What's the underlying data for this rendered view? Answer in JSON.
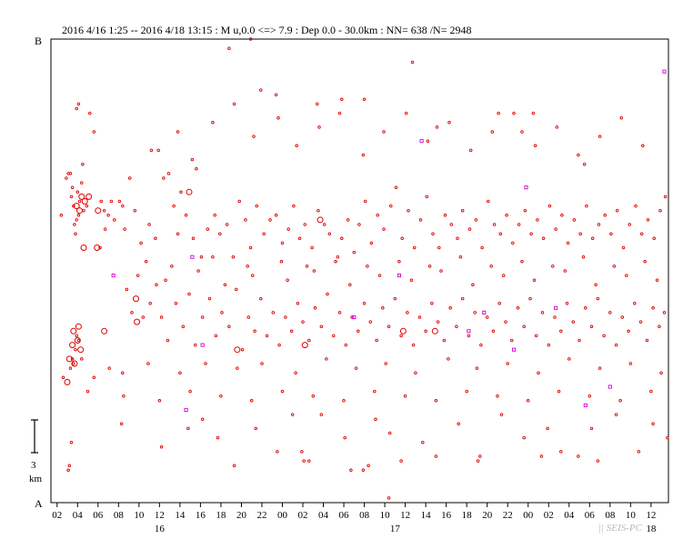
{
  "header": {
    "text": "2016 4/16 1:25 -- 2016 4/18 13:15  : M u,0.0 <=> 7.9   :  Dep 0.0 - 30.0km :  NN= 638 /N= 2948"
  },
  "watermark": "|| SEIS-PC",
  "colors": {
    "event": "#e00000",
    "highlight": "#d400d4",
    "axis": "#000000",
    "background": "#ffffff"
  },
  "chart_data": {
    "type": "scatter",
    "title": "",
    "ylabel_top": "B",
    "ylabel_bottom": "A",
    "scale_bar": {
      "value": "3",
      "unit": "km"
    },
    "xlim": [
      1.4,
      61.7
    ],
    "x_unit": "hours since 2016-04-16 00:00",
    "x_tick_labels": [
      "02",
      "04",
      "06",
      "08",
      "10",
      "12",
      "14",
      "16",
      "18",
      "20",
      "22",
      "00",
      "02",
      "04",
      "06",
      "08",
      "10",
      "12",
      "14",
      "16",
      "18",
      "20",
      "22",
      "00",
      "02",
      "04",
      "06",
      "08",
      "10",
      "12"
    ],
    "x_tick_hours": [
      2,
      4,
      6,
      8,
      10,
      12,
      14,
      16,
      18,
      20,
      22,
      24,
      26,
      28,
      30,
      32,
      34,
      36,
      38,
      40,
      42,
      44,
      46,
      48,
      50,
      52,
      54,
      56,
      58,
      60
    ],
    "date_labels": [
      {
        "label": "16",
        "hour": 12
      },
      {
        "label": "17",
        "hour": 35
      },
      {
        "label": "18",
        "hour": 60
      }
    ],
    "y_axis": "distance along profile A–B (A = 0, B = 1)",
    "points": [
      [
        2.4,
        0.62
      ],
      [
        2.9,
        0.7
      ],
      [
        3.1,
        0.71
      ],
      [
        3.3,
        0.71
      ],
      [
        3.4,
        0.66
      ],
      [
        3.5,
        0.68
      ],
      [
        3.6,
        0.64
      ],
      [
        3.7,
        0.6
      ],
      [
        3.8,
        0.58
      ],
      [
        3.9,
        0.61
      ],
      [
        4.0,
        0.67
      ],
      [
        4.1,
        0.62
      ],
      [
        4.2,
        0.65
      ],
      [
        4.4,
        0.69
      ],
      [
        4.5,
        0.73
      ],
      [
        4.6,
        0.63
      ],
      [
        4.9,
        0.64
      ],
      [
        3.3,
        0.29
      ],
      [
        3.5,
        0.31
      ],
      [
        3.6,
        0.3
      ],
      [
        3.8,
        0.33
      ],
      [
        3.9,
        0.36
      ],
      [
        4.1,
        0.35
      ],
      [
        4.4,
        0.31
      ],
      [
        2.6,
        0.27
      ],
      [
        3.1,
        0.07
      ],
      [
        3.2,
        0.08
      ],
      [
        3.4,
        0.13
      ],
      [
        3.9,
        0.85
      ],
      [
        4.1,
        0.86
      ],
      [
        5.2,
        0.84
      ],
      [
        5.6,
        0.8
      ],
      [
        6.3,
        0.65
      ],
      [
        6.6,
        0.63
      ],
      [
        7.0,
        0.62
      ],
      [
        7.3,
        0.65
      ],
      [
        6.2,
        0.55
      ],
      [
        6.7,
        0.59
      ],
      [
        7.6,
        0.61
      ],
      [
        8.1,
        0.65
      ],
      [
        8.4,
        0.64
      ],
      [
        8.6,
        0.59
      ],
      [
        9.1,
        0.7
      ],
      [
        9.6,
        0.63
      ],
      [
        10.2,
        0.56
      ],
      [
        11.0,
        0.6
      ],
      [
        11.6,
        0.57
      ],
      [
        11.9,
        0.76
      ],
      [
        12.4,
        0.7
      ],
      [
        12.9,
        0.71
      ],
      [
        13.4,
        0.64
      ],
      [
        13.8,
        0.58
      ],
      [
        14.1,
        0.67
      ],
      [
        14.6,
        0.62
      ],
      [
        15.3,
        0.57
      ],
      [
        15.6,
        0.72
      ],
      [
        16.1,
        0.53
      ],
      [
        16.7,
        0.59
      ],
      [
        17.4,
        0.62
      ],
      [
        17.9,
        0.58
      ],
      [
        18.6,
        0.6
      ],
      [
        19.2,
        0.53
      ],
      [
        19.8,
        0.65
      ],
      [
        20.4,
        0.61
      ],
      [
        20.9,
        0.55
      ],
      [
        21.5,
        0.64
      ],
      [
        22.2,
        0.58
      ],
      [
        22.8,
        0.61
      ],
      [
        23.4,
        0.62
      ],
      [
        24.0,
        0.56
      ],
      [
        24.6,
        0.59
      ],
      [
        25.1,
        0.64
      ],
      [
        25.7,
        0.57
      ],
      [
        26.2,
        0.6
      ],
      [
        26.9,
        0.55
      ],
      [
        27.5,
        0.63
      ],
      [
        28.1,
        0.6
      ],
      [
        28.6,
        0.58
      ],
      [
        29.2,
        0.52
      ],
      [
        29.8,
        0.57
      ],
      [
        30.4,
        0.61
      ],
      [
        31.0,
        0.54
      ],
      [
        31.5,
        0.6
      ],
      [
        32.1,
        0.65
      ],
      [
        32.7,
        0.56
      ],
      [
        33.3,
        0.62
      ],
      [
        33.9,
        0.59
      ],
      [
        34.6,
        0.64
      ],
      [
        35.1,
        0.68
      ],
      [
        35.7,
        0.57
      ],
      [
        36.3,
        0.63
      ],
      [
        36.9,
        0.55
      ],
      [
        37.5,
        0.61
      ],
      [
        38.1,
        0.66
      ],
      [
        38.7,
        0.58
      ],
      [
        39.3,
        0.55
      ],
      [
        39.9,
        0.62
      ],
      [
        40.5,
        0.6
      ],
      [
        41.1,
        0.57
      ],
      [
        41.6,
        0.63
      ],
      [
        42.3,
        0.59
      ],
      [
        42.9,
        0.61
      ],
      [
        43.5,
        0.55
      ],
      [
        44.1,
        0.65
      ],
      [
        44.7,
        0.6
      ],
      [
        45.3,
        0.58
      ],
      [
        45.9,
        0.62
      ],
      [
        46.5,
        0.56
      ],
      [
        47.1,
        0.6
      ],
      [
        47.7,
        0.63
      ],
      [
        48.3,
        0.58
      ],
      [
        48.9,
        0.61
      ],
      [
        49.5,
        0.57
      ],
      [
        50.1,
        0.64
      ],
      [
        50.7,
        0.59
      ],
      [
        51.3,
        0.62
      ],
      [
        51.9,
        0.56
      ],
      [
        52.5,
        0.61
      ],
      [
        53.1,
        0.58
      ],
      [
        53.7,
        0.64
      ],
      [
        54.3,
        0.57
      ],
      [
        54.9,
        0.6
      ],
      [
        55.5,
        0.62
      ],
      [
        56.1,
        0.58
      ],
      [
        56.7,
        0.63
      ],
      [
        57.3,
        0.55
      ],
      [
        57.9,
        0.6
      ],
      [
        58.5,
        0.64
      ],
      [
        59.1,
        0.58
      ],
      [
        59.7,
        0.61
      ],
      [
        60.3,
        0.57
      ],
      [
        60.9,
        0.63
      ],
      [
        61.4,
        0.66
      ],
      [
        8.8,
        0.46
      ],
      [
        9.3,
        0.41
      ],
      [
        10.4,
        0.4
      ],
      [
        11.1,
        0.43
      ],
      [
        11.7,
        0.47
      ],
      [
        12.2,
        0.4
      ],
      [
        12.8,
        0.35
      ],
      [
        13.6,
        0.43
      ],
      [
        14.3,
        0.38
      ],
      [
        14.9,
        0.45
      ],
      [
        15.5,
        0.34
      ],
      [
        16.2,
        0.4
      ],
      [
        16.9,
        0.44
      ],
      [
        17.5,
        0.36
      ],
      [
        18.1,
        0.41
      ],
      [
        18.8,
        0.38
      ],
      [
        19.5,
        0.46
      ],
      [
        20.1,
        0.33
      ],
      [
        20.7,
        0.4
      ],
      [
        21.3,
        0.37
      ],
      [
        21.9,
        0.44
      ],
      [
        22.5,
        0.36
      ],
      [
        23.1,
        0.41
      ],
      [
        23.7,
        0.34
      ],
      [
        24.3,
        0.4
      ],
      [
        24.9,
        0.37
      ],
      [
        25.5,
        0.43
      ],
      [
        26.0,
        0.39
      ],
      [
        26.6,
        0.35
      ],
      [
        27.2,
        0.42
      ],
      [
        27.8,
        0.38
      ],
      [
        28.4,
        0.45
      ],
      [
        29.0,
        0.36
      ],
      [
        29.6,
        0.41
      ],
      [
        30.2,
        0.34
      ],
      [
        30.8,
        0.4
      ],
      [
        31.4,
        0.37
      ],
      [
        32.0,
        0.43
      ],
      [
        32.6,
        0.39
      ],
      [
        33.2,
        0.35
      ],
      [
        33.8,
        0.42
      ],
      [
        34.4,
        0.38
      ],
      [
        35.0,
        0.44
      ],
      [
        35.6,
        0.36
      ],
      [
        36.2,
        0.41
      ],
      [
        36.8,
        0.34
      ],
      [
        37.4,
        0.4
      ],
      [
        38.0,
        0.37
      ],
      [
        38.6,
        0.43
      ],
      [
        39.2,
        0.39
      ],
      [
        39.8,
        0.35
      ],
      [
        40.4,
        0.42
      ],
      [
        41.0,
        0.38
      ],
      [
        41.6,
        0.44
      ],
      [
        42.2,
        0.36
      ],
      [
        42.8,
        0.41
      ],
      [
        43.4,
        0.34
      ],
      [
        44.0,
        0.4
      ],
      [
        44.6,
        0.37
      ],
      [
        45.2,
        0.43
      ],
      [
        45.8,
        0.39
      ],
      [
        46.4,
        0.35
      ],
      [
        47.0,
        0.42
      ],
      [
        47.6,
        0.38
      ],
      [
        48.2,
        0.44
      ],
      [
        48.8,
        0.36
      ],
      [
        49.4,
        0.41
      ],
      [
        50.0,
        0.34
      ],
      [
        50.6,
        0.4
      ],
      [
        51.2,
        0.37
      ],
      [
        51.8,
        0.43
      ],
      [
        52.4,
        0.39
      ],
      [
        53.0,
        0.35
      ],
      [
        53.6,
        0.42
      ],
      [
        54.2,
        0.38
      ],
      [
        54.8,
        0.44
      ],
      [
        55.4,
        0.36
      ],
      [
        56.0,
        0.41
      ],
      [
        56.6,
        0.34
      ],
      [
        57.2,
        0.4
      ],
      [
        57.8,
        0.37
      ],
      [
        58.4,
        0.43
      ],
      [
        59.0,
        0.39
      ],
      [
        59.6,
        0.35
      ],
      [
        60.2,
        0.42
      ],
      [
        60.8,
        0.38
      ],
      [
        61.3,
        0.41
      ],
      [
        9.9,
        0.49
      ],
      [
        12.6,
        0.48
      ],
      [
        15.8,
        0.5
      ],
      [
        18.4,
        0.47
      ],
      [
        21.1,
        0.49
      ],
      [
        24.5,
        0.48
      ],
      [
        27.1,
        0.5
      ],
      [
        30.6,
        0.47
      ],
      [
        33.5,
        0.49
      ],
      [
        36.6,
        0.48
      ],
      [
        39.5,
        0.5
      ],
      [
        42.6,
        0.47
      ],
      [
        45.6,
        0.49
      ],
      [
        48.6,
        0.48
      ],
      [
        51.6,
        0.5
      ],
      [
        54.6,
        0.47
      ],
      [
        57.6,
        0.49
      ],
      [
        60.6,
        0.48
      ],
      [
        10.7,
        0.52
      ],
      [
        13.2,
        0.51
      ],
      [
        17.2,
        0.53
      ],
      [
        20.6,
        0.51
      ],
      [
        23.9,
        0.52
      ],
      [
        26.4,
        0.51
      ],
      [
        29.4,
        0.53
      ],
      [
        32.3,
        0.51
      ],
      [
        35.4,
        0.52
      ],
      [
        38.4,
        0.51
      ],
      [
        41.4,
        0.53
      ],
      [
        44.4,
        0.51
      ],
      [
        47.4,
        0.52
      ],
      [
        50.4,
        0.51
      ],
      [
        53.4,
        0.53
      ],
      [
        56.4,
        0.51
      ],
      [
        59.4,
        0.52
      ],
      [
        5.6,
        0.27
      ],
      [
        7.1,
        0.29
      ],
      [
        8.4,
        0.28
      ],
      [
        10.9,
        0.3
      ],
      [
        14.0,
        0.28
      ],
      [
        16.5,
        0.3
      ],
      [
        19.6,
        0.29
      ],
      [
        22.0,
        0.3
      ],
      [
        25.3,
        0.28
      ],
      [
        28.3,
        0.31
      ],
      [
        31.2,
        0.29
      ],
      [
        34.1,
        0.3
      ],
      [
        37.0,
        0.28
      ],
      [
        40.2,
        0.31
      ],
      [
        43.0,
        0.29
      ],
      [
        46.0,
        0.3
      ],
      [
        49.0,
        0.28
      ],
      [
        52.0,
        0.31
      ],
      [
        55.0,
        0.29
      ],
      [
        58.0,
        0.3
      ],
      [
        61.0,
        0.28
      ],
      [
        5.0,
        0.24
      ],
      [
        8.5,
        0.23
      ],
      [
        12.0,
        0.22
      ],
      [
        15.0,
        0.24
      ],
      [
        18.0,
        0.23
      ],
      [
        21.0,
        0.22
      ],
      [
        24.0,
        0.24
      ],
      [
        27.0,
        0.23
      ],
      [
        30.0,
        0.22
      ],
      [
        33.0,
        0.24
      ],
      [
        36.0,
        0.23
      ],
      [
        39.0,
        0.22
      ],
      [
        42.0,
        0.24
      ],
      [
        45.0,
        0.23
      ],
      [
        48.0,
        0.22
      ],
      [
        51.0,
        0.24
      ],
      [
        54.0,
        0.23
      ],
      [
        57.0,
        0.22
      ],
      [
        60.0,
        0.24
      ],
      [
        11.2,
        0.76
      ],
      [
        13.8,
        0.8
      ],
      [
        15.2,
        0.74
      ],
      [
        17.2,
        0.82
      ],
      [
        19.3,
        0.86
      ],
      [
        21.2,
        0.79
      ],
      [
        23.6,
        0.83
      ],
      [
        25.4,
        0.77
      ],
      [
        27.6,
        0.81
      ],
      [
        29.8,
        0.87
      ],
      [
        31.9,
        0.75
      ],
      [
        33.9,
        0.8
      ],
      [
        36.1,
        0.84
      ],
      [
        38.2,
        0.78
      ],
      [
        40.3,
        0.82
      ],
      [
        42.4,
        0.76
      ],
      [
        44.5,
        0.8
      ],
      [
        46.6,
        0.84
      ],
      [
        48.7,
        0.77
      ],
      [
        50.8,
        0.81
      ],
      [
        52.9,
        0.75
      ],
      [
        55.0,
        0.79
      ],
      [
        57.1,
        0.83
      ],
      [
        59.2,
        0.77
      ],
      [
        18.8,
        0.98
      ],
      [
        20.9,
        1.0
      ],
      [
        21.9,
        0.89
      ],
      [
        23.4,
        0.88
      ],
      [
        27.4,
        0.86
      ],
      [
        29.6,
        0.84
      ],
      [
        32.0,
        0.87
      ],
      [
        36.7,
        0.95
      ],
      [
        39.1,
        0.81
      ],
      [
        45.1,
        0.84
      ],
      [
        47.4,
        0.8
      ],
      [
        48.5,
        0.84
      ],
      [
        53.5,
        0.73
      ],
      [
        8.3,
        0.17
      ],
      [
        12.2,
        0.12
      ],
      [
        14.8,
        0.16
      ],
      [
        16.2,
        0.18
      ],
      [
        17.7,
        0.14
      ],
      [
        19.3,
        0.08
      ],
      [
        21.4,
        0.16
      ],
      [
        23.5,
        0.11
      ],
      [
        25.0,
        0.19
      ],
      [
        26.1,
        0.09
      ],
      [
        27.8,
        0.19
      ],
      [
        30.1,
        0.14
      ],
      [
        31.9,
        0.07
      ],
      [
        33.1,
        0.18
      ],
      [
        34.5,
        0.15
      ],
      [
        35.6,
        0.09
      ],
      [
        37.7,
        0.13
      ],
      [
        39.0,
        0.1
      ],
      [
        41.2,
        0.17
      ],
      [
        43.1,
        0.09
      ],
      [
        45.4,
        0.19
      ],
      [
        47.6,
        0.14
      ],
      [
        49.9,
        0.16
      ],
      [
        51.2,
        0.11
      ],
      [
        52.9,
        0.1
      ],
      [
        54.2,
        0.16
      ],
      [
        56.6,
        0.19
      ],
      [
        58.8,
        0.11
      ],
      [
        60.2,
        0.17
      ],
      [
        61.6,
        0.14
      ],
      [
        25.9,
        0.11
      ],
      [
        26.6,
        0.09
      ],
      [
        30.7,
        0.07
      ],
      [
        32.4,
        0.08
      ],
      [
        34.4,
        0.01
      ],
      [
        43.3,
        0.1
      ],
      [
        49.3,
        0.1
      ],
      [
        54.8,
        0.09
      ]
    ],
    "large_points": [
      [
        3.2,
        0.31
      ],
      [
        3.5,
        0.34
      ],
      [
        3.7,
        0.3
      ],
      [
        4.0,
        0.35
      ],
      [
        4.3,
        0.33
      ],
      [
        3.6,
        0.37
      ],
      [
        4.1,
        0.38
      ],
      [
        6.6,
        0.37
      ],
      [
        9.8,
        0.39
      ],
      [
        3.9,
        0.64
      ],
      [
        4.2,
        0.63
      ],
      [
        4.4,
        0.66
      ],
      [
        4.7,
        0.65
      ],
      [
        5.1,
        0.66
      ],
      [
        6.0,
        0.63
      ],
      [
        4.6,
        0.55
      ],
      [
        5.9,
        0.55
      ],
      [
        9.7,
        0.44
      ],
      [
        14.9,
        0.67
      ],
      [
        19.6,
        0.33
      ],
      [
        35.8,
        0.37
      ],
      [
        38.9,
        0.37
      ],
      [
        26.2,
        0.34
      ],
      [
        27.7,
        0.61
      ],
      [
        3.0,
        0.26
      ]
    ],
    "highlight_points": [
      [
        7.5,
        0.49
      ],
      [
        15.2,
        0.53
      ],
      [
        16.2,
        0.34
      ],
      [
        31.0,
        0.4
      ],
      [
        42.2,
        0.37
      ],
      [
        46.6,
        0.33
      ],
      [
        47.8,
        0.68
      ],
      [
        56.0,
        0.25
      ],
      [
        61.3,
        0.93
      ],
      [
        35.4,
        0.49
      ],
      [
        37.6,
        0.78
      ],
      [
        43.7,
        0.41
      ],
      [
        50.7,
        0.42
      ],
      [
        53.6,
        0.21
      ],
      [
        14.6,
        0.2
      ]
    ]
  }
}
